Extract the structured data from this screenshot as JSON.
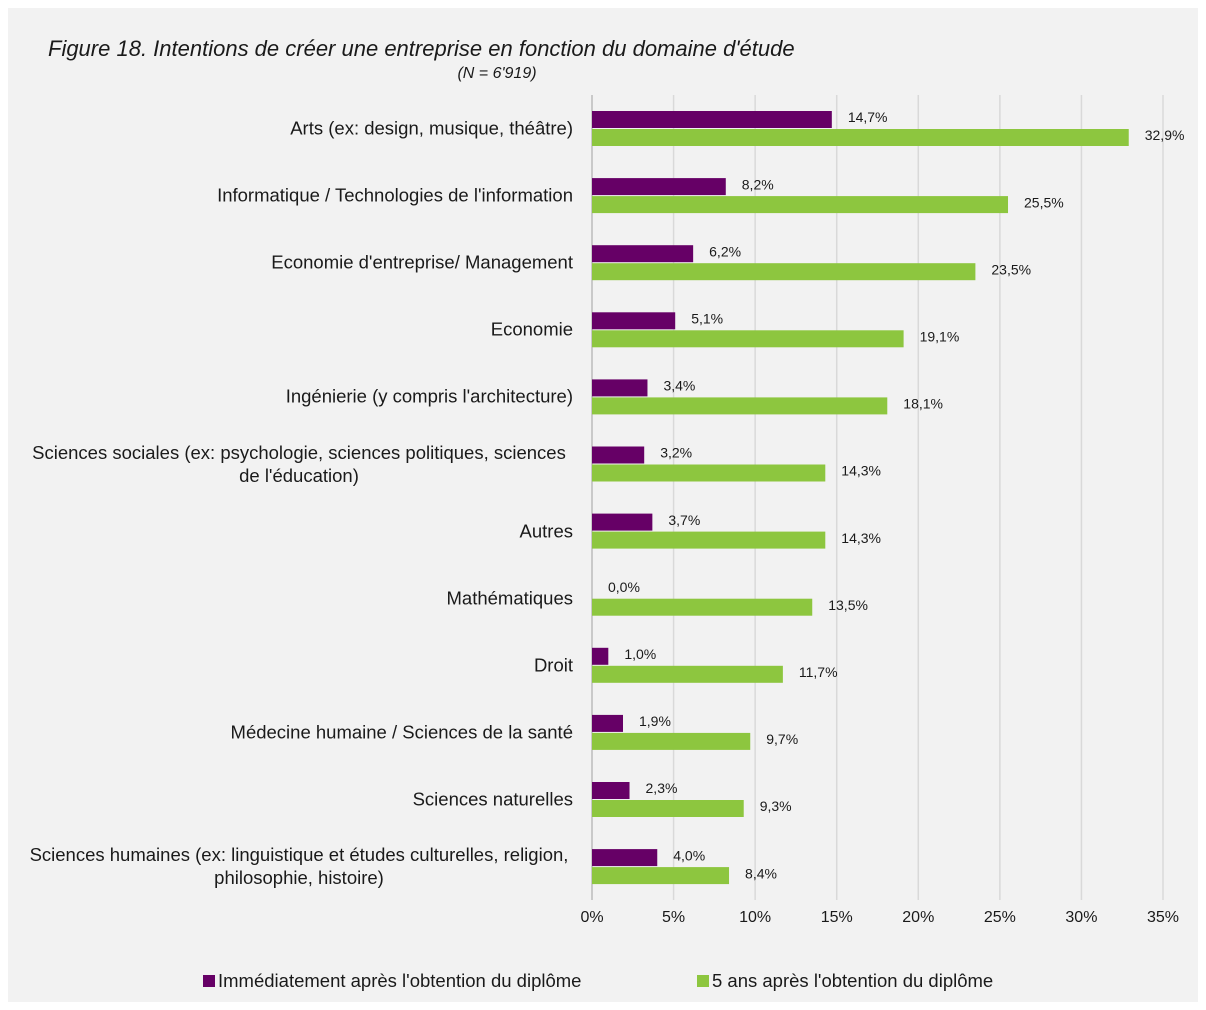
{
  "chart_data": {
    "type": "barh",
    "title": "Figure 18. Intentions de créer une entreprise en fonction du domaine d'étude",
    "subtitle": "(N = 6'919)",
    "categories": [
      "Arts (ex: design, musique, théâtre)",
      "Informatique / Technologies de l'information",
      "Economie d'entreprise/ Management",
      "Economie",
      "Ingénierie (y compris l'architecture)",
      "Sciences sociales (ex: psychologie, sciences politiques, sciences de l'éducation)",
      "Autres",
      "Mathématiques",
      "Droit",
      "Médecine humaine / Sciences de la santé",
      "Sciences naturelles",
      "Sciences humaines (ex: linguistique et études culturelles, religion, philosophie, histoire)"
    ],
    "series": [
      {
        "name": "Immédiatement après l'obtention du diplôme",
        "color": "#660066",
        "values": [
          14.7,
          8.2,
          6.2,
          5.1,
          3.4,
          3.2,
          3.7,
          0.0,
          1.0,
          1.9,
          2.3,
          4.0
        ],
        "value_labels": [
          "14,7%",
          "8,2%",
          "6,2%",
          "5,1%",
          "3,4%",
          "3,2%",
          "3,7%",
          "0,0%",
          "1,0%",
          "1,9%",
          "2,3%",
          "4,0%"
        ]
      },
      {
        "name": "5 ans après l'obtention du diplôme",
        "color": "#8dc63f",
        "values": [
          32.9,
          25.5,
          23.5,
          19.1,
          18.1,
          14.3,
          14.3,
          13.5,
          11.7,
          9.7,
          9.3,
          8.4
        ],
        "value_labels": [
          "32,9%",
          "25,5%",
          "23,5%",
          "19,1%",
          "18,1%",
          "14,3%",
          "14,3%",
          "13,5%",
          "11,7%",
          "9,7%",
          "9,3%",
          "8,4%"
        ]
      }
    ],
    "xlim": [
      0,
      35
    ],
    "xticks": [
      {
        "value": 0,
        "label": "0%"
      },
      {
        "value": 5,
        "label": "5%"
      },
      {
        "value": 10,
        "label": "10%"
      },
      {
        "value": 15,
        "label": "15%"
      },
      {
        "value": 20,
        "label": "20%"
      },
      {
        "value": 25,
        "label": "25%"
      },
      {
        "value": 30,
        "label": "30%"
      },
      {
        "value": 35,
        "label": "35%"
      }
    ],
    "grid": true,
    "legend": "bottom"
  }
}
